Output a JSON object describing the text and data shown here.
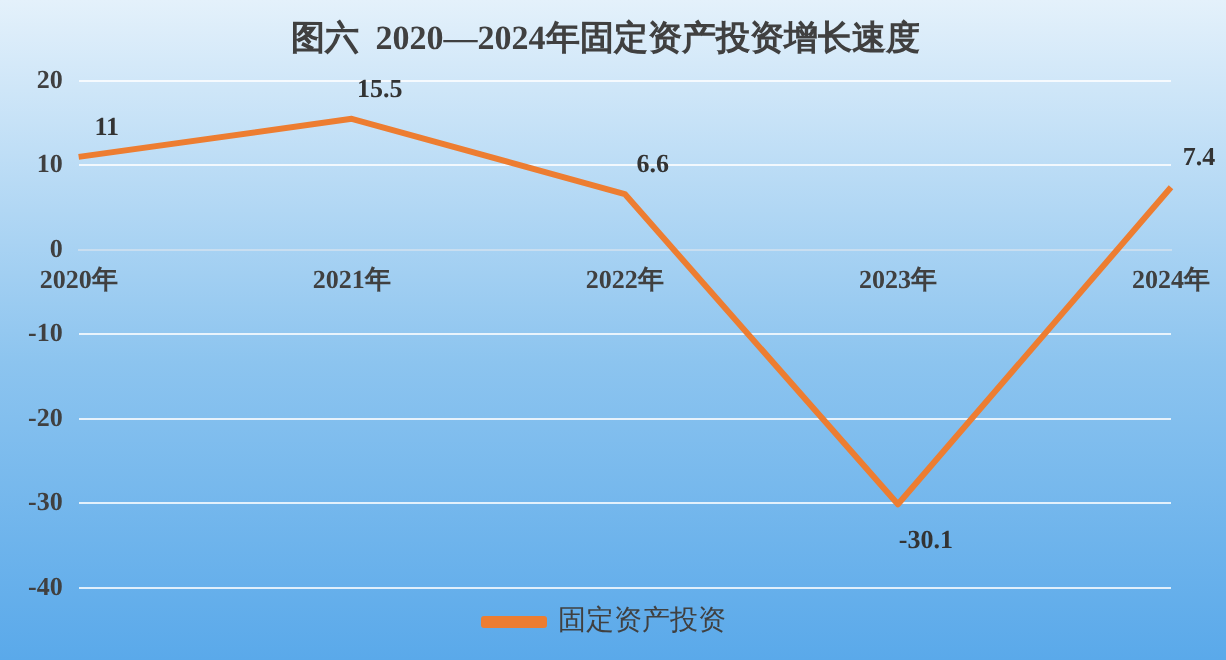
{
  "chart_data": {
    "type": "line",
    "title": "图六  2020—2024年固定资产投资增长速度",
    "categories": [
      "2020年",
      "2021年",
      "2022年",
      "2023年",
      "2024年"
    ],
    "series": [
      {
        "name": "固定资产投资",
        "color": "#ed7d31",
        "values": [
          11,
          15.5,
          6.6,
          -30.1,
          7.4
        ]
      }
    ],
    "ylim": [
      -40,
      20
    ],
    "yticks": [
      -40,
      -30,
      -20,
      -10,
      0,
      10,
      20
    ],
    "grid": "y",
    "legend": "bottom",
    "marker": "none",
    "line_style": "solid",
    "data_labels": true
  }
}
